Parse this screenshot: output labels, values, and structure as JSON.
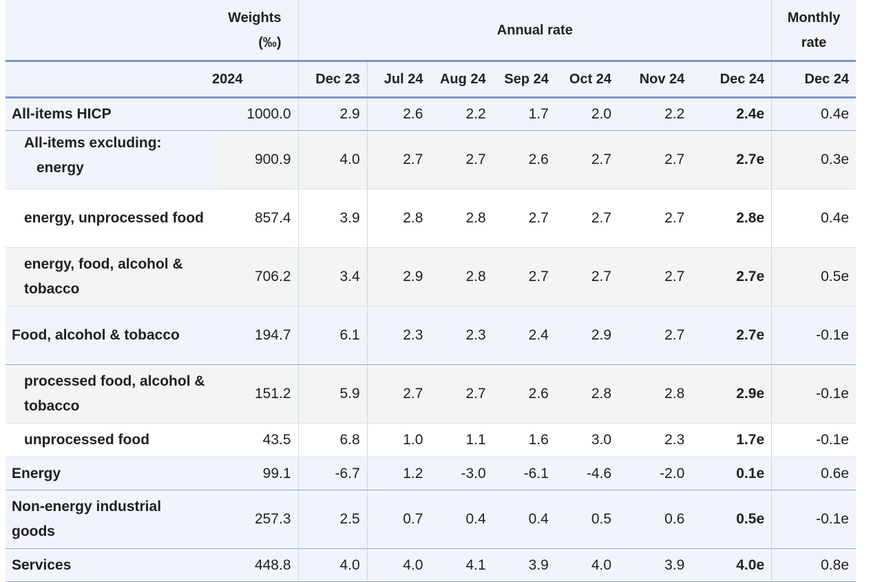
{
  "header": {
    "weights_line1": "Weights",
    "weights_line2": "(‰)",
    "annual_rate": "Annual rate",
    "monthly_line1": "Monthly",
    "monthly_line2": "rate",
    "columns": [
      "2024",
      "Dec 23",
      "Jul 24",
      "Aug 24",
      "Sep 24",
      "Oct 24",
      "Nov 24",
      "Dec 24",
      "Dec 24"
    ]
  },
  "rows": [
    {
      "label": "All-items HICP",
      "weight": "1000.0",
      "dec23": "2.9",
      "jul24": "2.6",
      "aug24": "2.2",
      "sep24": "1.7",
      "oct24": "2.0",
      "nov24": "2.2",
      "dec24": "2.4e",
      "monthly": "0.4e"
    },
    {
      "label": "All-items excluding:",
      "label2": "energy",
      "weight": "900.9",
      "dec23": "4.0",
      "jul24": "2.7",
      "aug24": "2.7",
      "sep24": "2.6",
      "oct24": "2.7",
      "nov24": "2.7",
      "dec24": "2.7e",
      "monthly": "0.3e"
    },
    {
      "label": "energy, unprocessed food",
      "weight": "857.4",
      "dec23": "3.9",
      "jul24": "2.8",
      "aug24": "2.8",
      "sep24": "2.7",
      "oct24": "2.7",
      "nov24": "2.7",
      "dec24": "2.8e",
      "monthly": "0.4e"
    },
    {
      "label": "energy, food, alcohol & tobacco",
      "weight": "706.2",
      "dec23": "3.4",
      "jul24": "2.9",
      "aug24": "2.8",
      "sep24": "2.7",
      "oct24": "2.7",
      "nov24": "2.7",
      "dec24": "2.7e",
      "monthly": "0.5e"
    },
    {
      "label": "Food, alcohol & tobacco",
      "weight": "194.7",
      "dec23": "6.1",
      "jul24": "2.3",
      "aug24": "2.3",
      "sep24": "2.4",
      "oct24": "2.9",
      "nov24": "2.7",
      "dec24": "2.7e",
      "monthly": "-0.1e"
    },
    {
      "label": "processed food, alcohol & tobacco",
      "weight": "151.2",
      "dec23": "5.9",
      "jul24": "2.7",
      "aug24": "2.7",
      "sep24": "2.6",
      "oct24": "2.8",
      "nov24": "2.8",
      "dec24": "2.9e",
      "monthly": "-0.1e"
    },
    {
      "label": "unprocessed food",
      "weight": "43.5",
      "dec23": "6.8",
      "jul24": "1.0",
      "aug24": "1.1",
      "sep24": "1.6",
      "oct24": "3.0",
      "nov24": "2.3",
      "dec24": "1.7e",
      "monthly": "-0.1e"
    },
    {
      "label": "Energy",
      "weight": "99.1",
      "dec23": "-6.7",
      "jul24": "1.2",
      "aug24": "-3.0",
      "sep24": "-6.1",
      "oct24": "-4.6",
      "nov24": "-2.0",
      "dec24": "0.1e",
      "monthly": "0.6e"
    },
    {
      "label": "Non-energy industrial goods",
      "weight": "257.3",
      "dec23": "2.5",
      "jul24": "0.7",
      "aug24": "0.4",
      "sep24": "0.4",
      "oct24": "0.5",
      "nov24": "0.6",
      "dec24": "0.5e",
      "monthly": "-0.1e"
    },
    {
      "label": "Services",
      "weight": "448.8",
      "dec23": "4.0",
      "jul24": "4.0",
      "aug24": "4.1",
      "sep24": "3.9",
      "oct24": "4.0",
      "nov24": "3.9",
      "dec24": "4.0e",
      "monthly": "0.8e"
    }
  ]
}
